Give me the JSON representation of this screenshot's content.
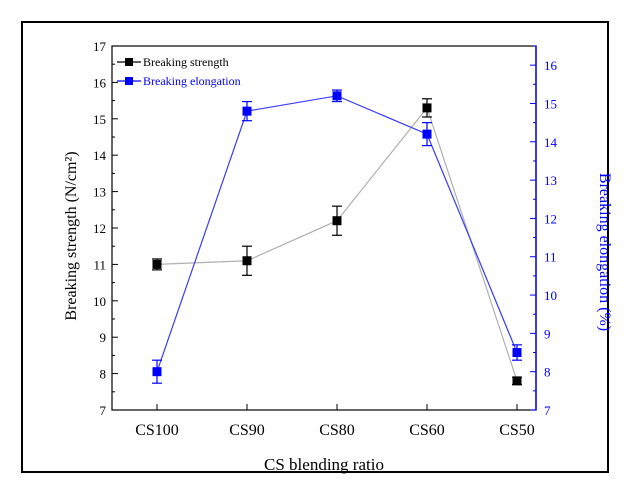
{
  "colors": {
    "series1": "#000000",
    "series2": "#0000ff",
    "line1": "#b0b0b0",
    "line2": "#3a3aff",
    "axis": "#000000"
  },
  "chart_data": {
    "type": "line",
    "xlabel": "CS blending ratio",
    "ylabel_left": "Breaking strength (N/cm²)",
    "ylabel_right": "Breaking elongation (%)",
    "categories": [
      "CS100",
      "CS90",
      "CS80",
      "CS60",
      "CS50"
    ],
    "y_left": {
      "min": 7,
      "max": 17,
      "ticks": [
        7,
        8,
        9,
        10,
        11,
        12,
        13,
        14,
        15,
        16,
        17
      ]
    },
    "y_right": {
      "min": 7,
      "max": 16.5,
      "ticks": [
        7,
        8,
        9,
        10,
        11,
        12,
        13,
        14,
        15,
        16
      ]
    },
    "legend_position": "top-left",
    "series": [
      {
        "name": "Breaking strength",
        "axis": "left",
        "marker": "square",
        "values": [
          11.0,
          11.1,
          12.2,
          15.3,
          7.8
        ],
        "errors": [
          0.15,
          0.4,
          0.4,
          0.25,
          0.1
        ]
      },
      {
        "name": "Breaking elongation",
        "axis": "right",
        "marker": "square",
        "values": [
          8.0,
          14.8,
          15.2,
          14.2,
          8.5
        ],
        "errors": [
          0.3,
          0.25,
          0.15,
          0.3,
          0.2
        ]
      }
    ]
  }
}
